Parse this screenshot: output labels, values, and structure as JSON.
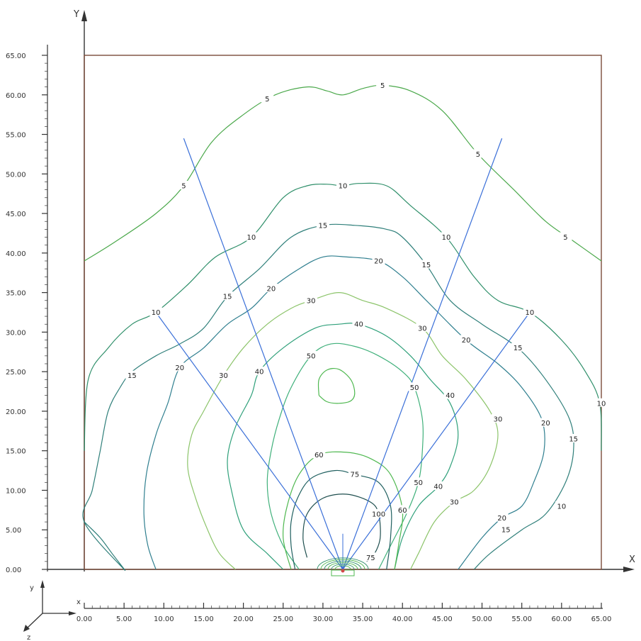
{
  "chart_data": {
    "type": "contour",
    "title": "",
    "xlabel": "X",
    "ylabel": "Y",
    "xlim": [
      0,
      65
    ],
    "ylim": [
      0,
      65
    ],
    "x_ticks": [
      "0.00",
      "5.00",
      "10.00",
      "15.00",
      "20.00",
      "25.00",
      "30.00",
      "35.00",
      "40.00",
      "45.00",
      "50.00",
      "55.00",
      "60.00",
      "65.00"
    ],
    "y_ticks": [
      "0.00",
      "5.00",
      "10.00",
      "15.00",
      "20.00",
      "25.00",
      "30.00",
      "35.00",
      "40.00",
      "45.00",
      "50.00",
      "55.00",
      "60.00",
      "65.00"
    ],
    "triad": {
      "y": "y",
      "x": "x",
      "z": "z"
    },
    "colors": {
      "frame": "#7a4b3a",
      "ray": "#3a6fd8",
      "axis": "#333333"
    },
    "source_point": [
      32.5,
      0
    ],
    "rays": [
      {
        "end": [
          12.5,
          54.5
        ]
      },
      {
        "end": [
          9.0,
          32.5
        ]
      },
      {
        "end": [
          52.5,
          54.5
        ]
      },
      {
        "end": [
          56.0,
          32.5
        ]
      }
    ],
    "contours": [
      {
        "level": 5,
        "color": "#4aa84a",
        "labels": [
          {
            "text": "5",
            "x": 23,
            "y": 59.5
          },
          {
            "text": "5",
            "x": 37.5,
            "y": 61.2
          },
          {
            "text": "5",
            "x": 49.5,
            "y": 52.5
          },
          {
            "text": "5",
            "x": 12.5,
            "y": 48.5
          },
          {
            "text": "5",
            "x": 60.5,
            "y": 42
          }
        ],
        "points": [
          [
            0,
            39
          ],
          [
            4,
            41.5
          ],
          [
            9,
            45
          ],
          [
            12.5,
            48.5
          ],
          [
            16,
            54
          ],
          [
            20,
            57.5
          ],
          [
            24,
            60
          ],
          [
            28,
            61
          ],
          [
            30.5,
            60.5
          ],
          [
            32.5,
            60
          ],
          [
            35,
            60.8
          ],
          [
            37.5,
            61.2
          ],
          [
            41,
            60.5
          ],
          [
            45,
            58
          ],
          [
            49.5,
            52.5
          ],
          [
            54,
            48
          ],
          [
            58,
            44
          ],
          [
            61.5,
            41.5
          ],
          [
            65,
            39
          ]
        ]
      },
      {
        "level": 10,
        "color": "#2f8f6a",
        "labels": [
          {
            "text": "10",
            "x": 21,
            "y": 42
          },
          {
            "text": "10",
            "x": 32.5,
            "y": 48.5
          },
          {
            "text": "10",
            "x": 45.5,
            "y": 42
          },
          {
            "text": "10",
            "x": 9,
            "y": 32.5
          },
          {
            "text": "10",
            "x": 56,
            "y": 32.5
          },
          {
            "text": "10",
            "x": 65,
            "y": 21
          },
          {
            "text": "10",
            "x": 60,
            "y": 8
          }
        ],
        "points": [
          [
            0,
            15
          ],
          [
            0.5,
            24
          ],
          [
            3,
            28
          ],
          [
            6,
            31
          ],
          [
            9,
            32.5
          ],
          [
            13,
            36
          ],
          [
            16.5,
            39.5
          ],
          [
            21,
            42
          ],
          [
            25,
            47
          ],
          [
            28,
            48.5
          ],
          [
            30.5,
            48.7
          ],
          [
            32.5,
            48.5
          ],
          [
            34.5,
            48.8
          ],
          [
            38,
            48.5
          ],
          [
            41,
            46
          ],
          [
            45.5,
            42
          ],
          [
            49,
            37
          ],
          [
            52,
            34
          ],
          [
            56,
            32.5
          ],
          [
            60,
            29
          ],
          [
            63,
            25
          ],
          [
            64.8,
            21
          ],
          [
            65,
            15
          ]
        ]
      },
      {
        "level": 15,
        "color": "#2f7f7a",
        "labels": [
          {
            "text": "15",
            "x": 30,
            "y": 43.5
          },
          {
            "text": "15",
            "x": 43,
            "y": 38.5
          },
          {
            "text": "15",
            "x": 18,
            "y": 34.5
          },
          {
            "text": "15",
            "x": 6,
            "y": 24.5
          },
          {
            "text": "15",
            "x": 54.5,
            "y": 28
          },
          {
            "text": "15",
            "x": 61.5,
            "y": 16.5
          },
          {
            "text": "15",
            "x": 53,
            "y": 5
          }
        ],
        "points": [
          [
            0,
            6
          ],
          [
            2,
            4
          ],
          [
            3.5,
            2
          ],
          [
            5,
            0
          ],
          [
            0,
            6
          ],
          [
            1,
            10
          ],
          [
            2,
            15
          ],
          [
            3,
            20
          ],
          [
            4.5,
            23
          ],
          [
            6,
            25
          ],
          [
            9,
            27
          ],
          [
            12,
            28.5
          ],
          [
            15,
            30.5
          ],
          [
            18,
            34.5
          ],
          [
            22,
            38
          ],
          [
            26,
            42
          ],
          [
            30,
            43.5
          ],
          [
            34,
            43.5
          ],
          [
            38,
            43
          ],
          [
            40,
            42
          ],
          [
            43,
            38.5
          ],
          [
            46,
            34
          ],
          [
            50,
            31
          ],
          [
            54.5,
            28
          ],
          [
            58,
            24
          ],
          [
            61,
            19
          ],
          [
            61.5,
            15
          ],
          [
            60.5,
            11
          ],
          [
            58,
            7
          ],
          [
            55,
            5
          ],
          [
            51,
            2
          ],
          [
            49,
            0
          ]
        ]
      },
      {
        "level": 20,
        "color": "#2f7f8f",
        "labels": [
          {
            "text": "20",
            "x": 23.5,
            "y": 35.5
          },
          {
            "text": "20",
            "x": 37,
            "y": 39
          },
          {
            "text": "20",
            "x": 12,
            "y": 25.5
          },
          {
            "text": "20",
            "x": 48,
            "y": 29
          },
          {
            "text": "20",
            "x": 58,
            "y": 18.5
          },
          {
            "text": "20",
            "x": 52.5,
            "y": 6.5
          }
        ],
        "points": [
          [
            9,
            0
          ],
          [
            8,
            3
          ],
          [
            7.5,
            7
          ],
          [
            7.8,
            12
          ],
          [
            9,
            17
          ],
          [
            10.5,
            21
          ],
          [
            12,
            25.5
          ],
          [
            15,
            28
          ],
          [
            18,
            31
          ],
          [
            21,
            33
          ],
          [
            23.5,
            35.5
          ],
          [
            27,
            38
          ],
          [
            30,
            39.5
          ],
          [
            33,
            39.5
          ],
          [
            37,
            39
          ],
          [
            40,
            37
          ],
          [
            43,
            34
          ],
          [
            48,
            29
          ],
          [
            52,
            26
          ],
          [
            55,
            23
          ],
          [
            57.5,
            19
          ],
          [
            57.8,
            15
          ],
          [
            56.5,
            11
          ],
          [
            55,
            8
          ],
          [
            52.5,
            6.5
          ],
          [
            50,
            4
          ],
          [
            47,
            0
          ]
        ]
      },
      {
        "level": 30,
        "color": "#8cc46a",
        "labels": [
          {
            "text": "30",
            "x": 28.5,
            "y": 34
          },
          {
            "text": "30",
            "x": 42.5,
            "y": 30.5
          },
          {
            "text": "30",
            "x": 17.5,
            "y": 24.5
          },
          {
            "text": "30",
            "x": 52,
            "y": 19
          },
          {
            "text": "30",
            "x": 46.5,
            "y": 8.5
          }
        ],
        "points": [
          [
            19,
            0
          ],
          [
            17,
            2
          ],
          [
            15.5,
            5
          ],
          [
            14,
            9
          ],
          [
            13,
            13
          ],
          [
            13.5,
            17
          ],
          [
            15,
            20
          ],
          [
            17.5,
            24.5
          ],
          [
            20,
            28
          ],
          [
            23,
            31
          ],
          [
            26,
            33
          ],
          [
            28.5,
            34
          ],
          [
            32,
            35
          ],
          [
            35,
            34
          ],
          [
            38,
            33
          ],
          [
            42.5,
            30.5
          ],
          [
            45,
            27
          ],
          [
            48,
            24
          ],
          [
            51,
            20
          ],
          [
            52,
            17
          ],
          [
            51,
            13
          ],
          [
            49,
            10
          ],
          [
            46.5,
            8.5
          ],
          [
            44,
            6
          ],
          [
            42,
            2
          ],
          [
            41,
            0
          ]
        ]
      },
      {
        "level": 40,
        "color": "#2fa07a",
        "labels": [
          {
            "text": "40",
            "x": 34.5,
            "y": 31
          },
          {
            "text": "40",
            "x": 22,
            "y": 25
          },
          {
            "text": "40",
            "x": 46,
            "y": 22
          },
          {
            "text": "40",
            "x": 44.5,
            "y": 10.5
          }
        ],
        "points": [
          [
            25,
            0
          ],
          [
            23,
            2
          ],
          [
            20,
            5
          ],
          [
            18.5,
            10
          ],
          [
            18,
            14
          ],
          [
            19,
            18
          ],
          [
            21,
            22
          ],
          [
            22,
            25
          ],
          [
            25,
            28
          ],
          [
            29,
            30.5
          ],
          [
            32,
            31
          ],
          [
            34.5,
            31
          ],
          [
            38,
            29.5
          ],
          [
            41,
            27
          ],
          [
            43.5,
            24
          ],
          [
            46,
            21
          ],
          [
            47,
            17
          ],
          [
            46,
            13
          ],
          [
            44.5,
            10.5
          ],
          [
            42,
            8
          ],
          [
            40,
            4
          ],
          [
            39,
            0
          ]
        ]
      },
      {
        "level": 50,
        "color": "#3fb07a",
        "labels": [
          {
            "text": "50",
            "x": 28.5,
            "y": 27
          },
          {
            "text": "50",
            "x": 41.5,
            "y": 23
          },
          {
            "text": "50",
            "x": 42,
            "y": 11
          }
        ],
        "points": [
          [
            27,
            0
          ],
          [
            25,
            3
          ],
          [
            23.5,
            7
          ],
          [
            23,
            11
          ],
          [
            23.5,
            15
          ],
          [
            24.5,
            19
          ],
          [
            26,
            23
          ],
          [
            28.5,
            27
          ],
          [
            31,
            28.5
          ],
          [
            34,
            28.2
          ],
          [
            37,
            27
          ],
          [
            40,
            25
          ],
          [
            41.5,
            23
          ],
          [
            42.5,
            19
          ],
          [
            42.5,
            15
          ],
          [
            42,
            11
          ],
          [
            40.5,
            7
          ],
          [
            38.5,
            3
          ],
          [
            37,
            0
          ]
        ]
      },
      {
        "level": 60,
        "color": "#4fb850",
        "labels": [
          {
            "text": "60",
            "x": 29.5,
            "y": 14.5
          },
          {
            "text": "60",
            "x": 40,
            "y": 7.5
          }
        ],
        "points": [
          [
            26,
            0
          ],
          [
            25,
            4
          ],
          [
            25.5,
            8
          ],
          [
            27,
            12
          ],
          [
            29.5,
            14.5
          ],
          [
            33,
            14.8
          ],
          [
            36,
            14
          ],
          [
            38.5,
            12
          ],
          [
            40,
            7.5
          ],
          [
            39.5,
            3
          ],
          [
            39,
            0
          ]
        ]
      },
      {
        "level": 60,
        "color": "#4fb850",
        "labels": [],
        "points": [
          [
            29.5,
            22
          ],
          [
            29.5,
            24
          ],
          [
            30.5,
            25.2
          ],
          [
            32,
            25.3
          ],
          [
            33.5,
            24
          ],
          [
            34,
            22.3
          ],
          [
            33.5,
            21.3
          ],
          [
            32,
            21
          ],
          [
            30.5,
            21.2
          ],
          [
            29.5,
            22
          ]
        ]
      },
      {
        "level": 75,
        "color": "#1f5f5f",
        "labels": [
          {
            "text": "75",
            "x": 34,
            "y": 12
          },
          {
            "text": "75",
            "x": 36,
            "y": 1.5
          }
        ],
        "points": [
          [
            26.5,
            0
          ],
          [
            26,
            3
          ],
          [
            26,
            6
          ],
          [
            26.8,
            9
          ],
          [
            28.5,
            11.5
          ],
          [
            31.5,
            12.5
          ],
          [
            34,
            12
          ],
          [
            37,
            11
          ],
          [
            38.5,
            8
          ],
          [
            38.5,
            4
          ],
          [
            38,
            0
          ]
        ]
      },
      {
        "level": 100,
        "color": "#1f4f4f",
        "labels": [
          {
            "text": "100",
            "x": 37,
            "y": 7
          }
        ],
        "points": [
          [
            28,
            1.5
          ],
          [
            27.5,
            4
          ],
          [
            28,
            7
          ],
          [
            30,
            9
          ],
          [
            33,
            9.5
          ],
          [
            36,
            8.5
          ],
          [
            37,
            7
          ],
          [
            37.2,
            4
          ],
          [
            36.5,
            2
          ],
          [
            35.5,
            1
          ]
        ]
      }
    ]
  }
}
